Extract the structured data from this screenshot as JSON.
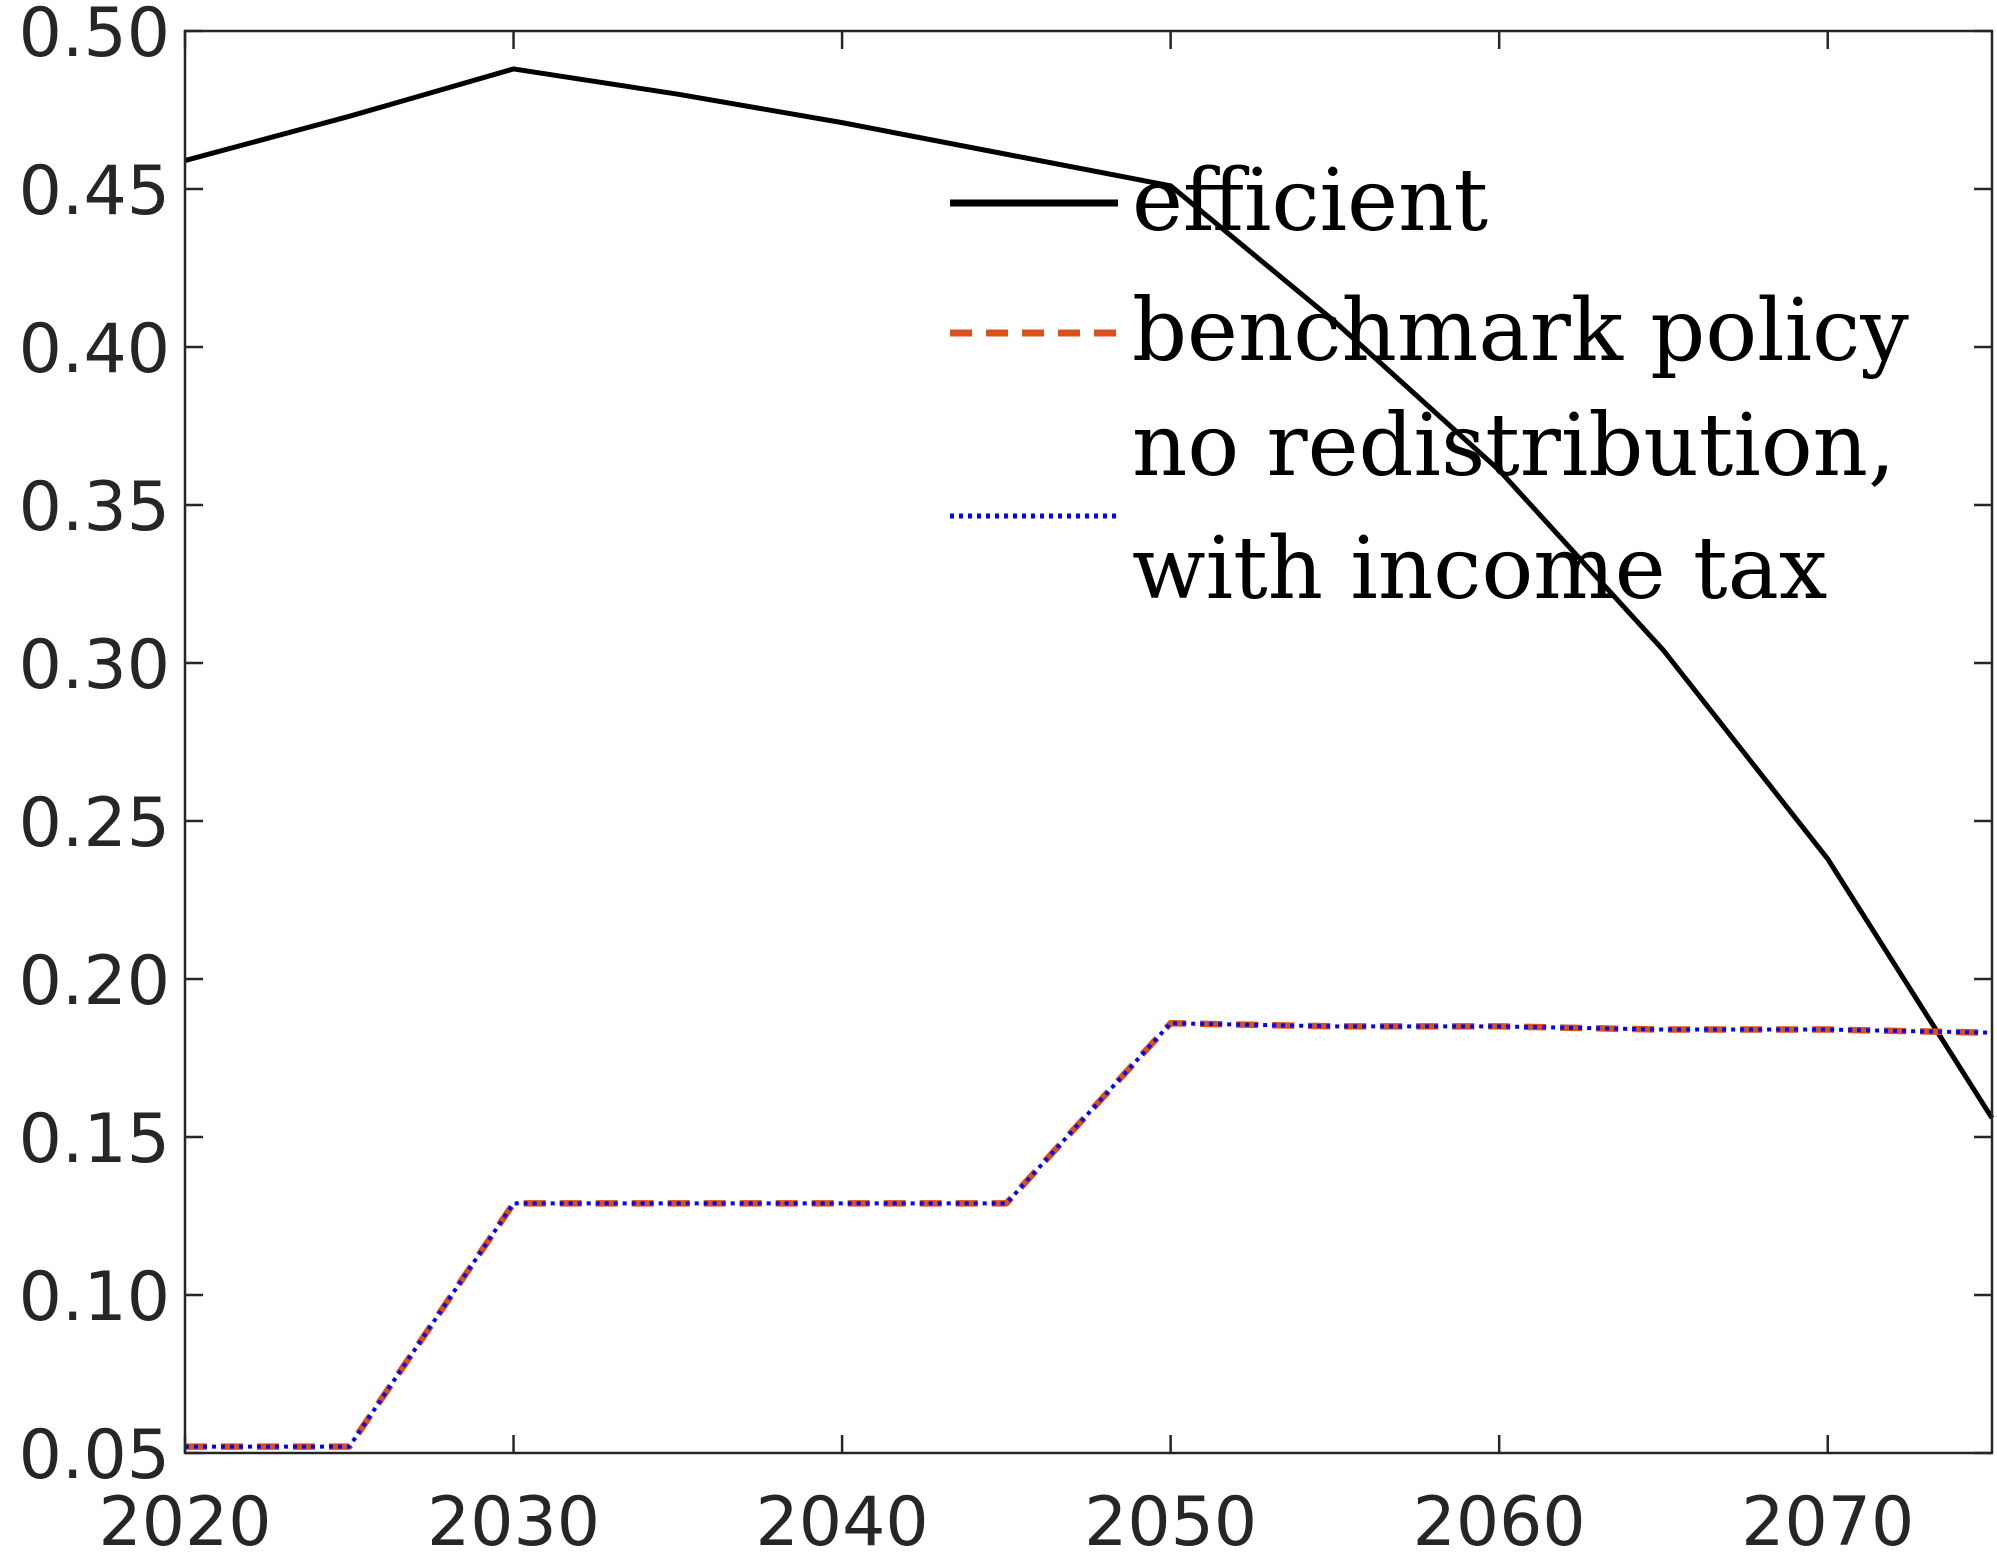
{
  "chart_data": {
    "type": "line",
    "title": "",
    "xlabel": "",
    "ylabel": "",
    "xlim": [
      2020,
      2075
    ],
    "ylim": [
      0.05,
      0.5
    ],
    "x_ticks": [
      "2020",
      "2030",
      "2040",
      "2050",
      "2060",
      "2070"
    ],
    "y_ticks": [
      "0.05",
      "0.10",
      "0.15",
      "0.20",
      "0.25",
      "0.30",
      "0.35",
      "0.40",
      "0.45",
      "0.50"
    ],
    "grid": false,
    "legend_position": "top-right",
    "series": [
      {
        "name": "efficient",
        "color": "#000000",
        "style": "solid",
        "x": [
          2020,
          2025,
          2030,
          2035,
          2040,
          2045,
          2050,
          2055,
          2060,
          2065,
          2070,
          2075
        ],
        "y": [
          0.459,
          0.473,
          0.488,
          0.48,
          0.471,
          0.461,
          0.451,
          0.408,
          0.361,
          0.304,
          0.238,
          0.156
        ]
      },
      {
        "name": "benchmark policy",
        "color": "#D95319",
        "style": "dashed",
        "x": [
          2020,
          2025,
          2030,
          2035,
          2040,
          2045,
          2050,
          2055,
          2060,
          2065,
          2070,
          2075
        ],
        "y": [
          0.052,
          0.052,
          0.129,
          0.129,
          0.129,
          0.129,
          0.186,
          0.185,
          0.185,
          0.184,
          0.184,
          0.183
        ]
      },
      {
        "name": "no redistribution, with income tax",
        "name_lines": [
          "no redistribution,",
          "with income tax"
        ],
        "color": "#0000FF",
        "style": "dotted",
        "x": [
          2020,
          2025,
          2030,
          2035,
          2040,
          2045,
          2050,
          2055,
          2060,
          2065,
          2070,
          2075
        ],
        "y": [
          0.052,
          0.052,
          0.129,
          0.129,
          0.129,
          0.129,
          0.186,
          0.185,
          0.185,
          0.184,
          0.184,
          0.183
        ]
      }
    ]
  }
}
